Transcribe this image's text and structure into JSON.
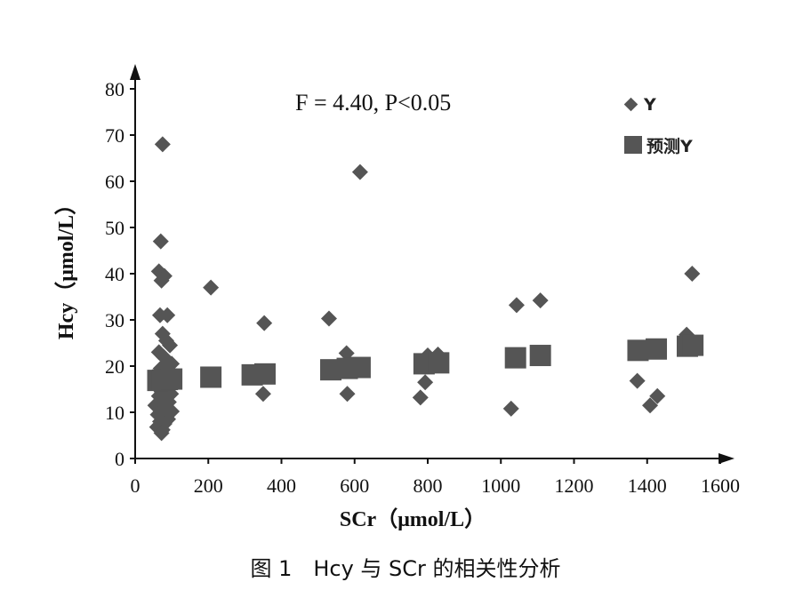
{
  "caption": "图 1　Hcy 与 SCr 的相关性分析",
  "chart_data": {
    "type": "scatter",
    "xlabel": "SCr（μmol/L）",
    "ylabel": "Hcy（μmol/L）",
    "xlim": [
      0,
      1600
    ],
    "ylim": [
      0,
      80
    ],
    "xticks": [
      0,
      200,
      400,
      600,
      800,
      1000,
      1200,
      1400,
      1600
    ],
    "yticks": [
      0,
      10,
      20,
      30,
      40,
      50,
      60,
      70,
      80
    ],
    "annotation": "F = 4.40, P<0.05",
    "legend_position": "top-right",
    "color": "#555555",
    "series": [
      {
        "name": "Y",
        "marker": "diamond",
        "points": [
          [
            75,
            68
          ],
          [
            70,
            47
          ],
          [
            65,
            40.5
          ],
          [
            80,
            39.5
          ],
          [
            72,
            38.5
          ],
          [
            68,
            31
          ],
          [
            88,
            31
          ],
          [
            75,
            27
          ],
          [
            85,
            25.5
          ],
          [
            95,
            24.5
          ],
          [
            65,
            23
          ],
          [
            78,
            22
          ],
          [
            90,
            21
          ],
          [
            100,
            20.5
          ],
          [
            70,
            19.5
          ],
          [
            82,
            18.5
          ],
          [
            95,
            17.5
          ],
          [
            60,
            16.5
          ],
          [
            88,
            15.5
          ],
          [
            72,
            14.5
          ],
          [
            98,
            14
          ],
          [
            65,
            13.5
          ],
          [
            80,
            12.8
          ],
          [
            92,
            12.2
          ],
          [
            55,
            11.5
          ],
          [
            70,
            11
          ],
          [
            85,
            10.5
          ],
          [
            100,
            10.2
          ],
          [
            62,
            9.5
          ],
          [
            78,
            9
          ],
          [
            90,
            8.5
          ],
          [
            68,
            8
          ],
          [
            80,
            7.5
          ],
          [
            60,
            6.8
          ],
          [
            75,
            6.2
          ],
          [
            72,
            5.5
          ],
          [
            207,
            37
          ],
          [
            353,
            29.3
          ],
          [
            350,
            14
          ],
          [
            530,
            30.3
          ],
          [
            578,
            22.8
          ],
          [
            580,
            14
          ],
          [
            615,
            62
          ],
          [
            780,
            13.2
          ],
          [
            793,
            16.5
          ],
          [
            800,
            22.3
          ],
          [
            828,
            22.5
          ],
          [
            1028,
            10.8
          ],
          [
            1043,
            33.2
          ],
          [
            1108,
            34.2
          ],
          [
            1373,
            16.8
          ],
          [
            1408,
            11.5
          ],
          [
            1428,
            13.5
          ],
          [
            1508,
            26.8
          ],
          [
            1523,
            40
          ]
        ]
      },
      {
        "name": "预测Y",
        "marker": "square",
        "points": [
          [
            62,
            16.9
          ],
          [
            75,
            17
          ],
          [
            88,
            17.1
          ],
          [
            100,
            17.2
          ],
          [
            207,
            17.6
          ],
          [
            320,
            18.1
          ],
          [
            355,
            18.3
          ],
          [
            535,
            19.2
          ],
          [
            580,
            19.5
          ],
          [
            615,
            19.7
          ],
          [
            790,
            20.5
          ],
          [
            830,
            20.7
          ],
          [
            1040,
            21.8
          ],
          [
            1108,
            22.3
          ],
          [
            1375,
            23.4
          ],
          [
            1425,
            23.7
          ],
          [
            1510,
            24.3
          ],
          [
            1525,
            24.5
          ]
        ]
      }
    ]
  }
}
